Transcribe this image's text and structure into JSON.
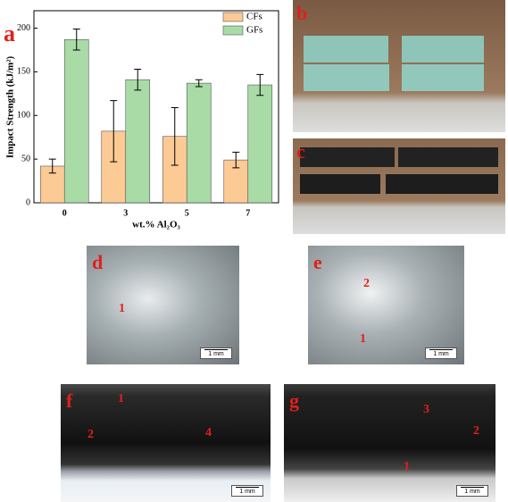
{
  "chart_data": {
    "type": "bar",
    "panel_label": "a",
    "xlabel": "wt.% Al₂O₃",
    "ylabel": "Impact Strength (kJ/m²)",
    "categories": [
      "0",
      "3",
      "5",
      "7"
    ],
    "series": [
      {
        "name": "CFs",
        "color": "#fcca95",
        "values": [
          42,
          82,
          76,
          49
        ],
        "errors": [
          8,
          35,
          33,
          9
        ]
      },
      {
        "name": "GFs",
        "color": "#a9dba6",
        "values": [
          187,
          141,
          137,
          135
        ],
        "errors": [
          12,
          12,
          4,
          12
        ]
      }
    ],
    "ylim": [
      0,
      220
    ],
    "yticks": [
      0,
      50,
      100,
      150,
      200
    ],
    "legend": "top-right"
  },
  "photos": [
    {
      "label": "b",
      "annotations": []
    },
    {
      "label": "c",
      "annotations": []
    },
    {
      "label": "d",
      "annotations": [
        "1"
      ],
      "scale_bar": "1 mm"
    },
    {
      "label": "e",
      "annotations": [
        "2",
        "1"
      ],
      "scale_bar": "1 mm"
    },
    {
      "label": "f",
      "annotations": [
        "1",
        "2",
        "4"
      ],
      "scale_bar": "1 mm"
    },
    {
      "label": "g",
      "annotations": [
        "3",
        "2",
        "1"
      ],
      "scale_bar": "1 mm"
    }
  ]
}
